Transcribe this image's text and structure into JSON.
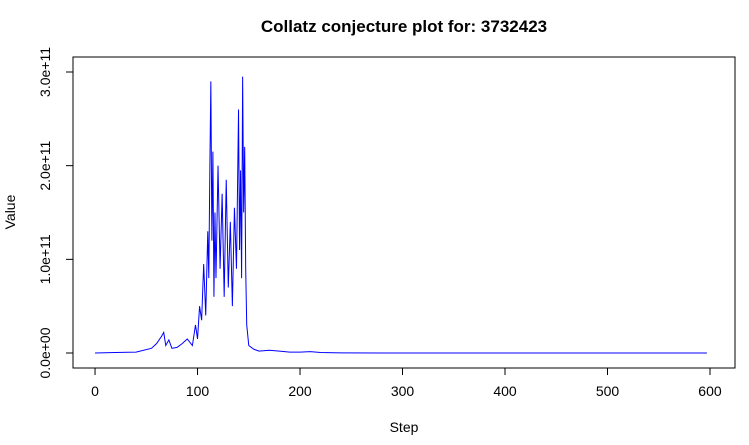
{
  "chart_data": {
    "type": "line",
    "title": "Collatz conjecture plot for: 3732423",
    "x_label": "Step",
    "y_label": "Value",
    "x": [
      0,
      20,
      40,
      55,
      60,
      65,
      67,
      69,
      72,
      75,
      80,
      85,
      90,
      95,
      98,
      100,
      102,
      104,
      106,
      108,
      110,
      111,
      112,
      113,
      114,
      115,
      116,
      117,
      118,
      120,
      122,
      124,
      126,
      128,
      130,
      132,
      134,
      136,
      138,
      140,
      141,
      142,
      143,
      144,
      145,
      146,
      147,
      148,
      150,
      155,
      160,
      170,
      180,
      190,
      200,
      210,
      220,
      240,
      300,
      400,
      500,
      597
    ],
    "series": [
      {
        "color": "#0000ff",
        "values": [
          3732423,
          500000000,
          1000000000,
          5000000000,
          10000000000,
          18000000000,
          22000000000,
          8000000000,
          14000000000,
          5000000000,
          6000000000,
          10000000000,
          15000000000,
          8000000000,
          30000000000,
          15000000000,
          50000000000,
          35000000000,
          95000000000,
          40000000000,
          130000000000,
          80000000000,
          195000000000,
          290000000000,
          120000000000,
          215000000000,
          60000000000,
          150000000000,
          80000000000,
          200000000000,
          90000000000,
          170000000000,
          60000000000,
          185000000000,
          70000000000,
          140000000000,
          50000000000,
          155000000000,
          90000000000,
          260000000000,
          110000000000,
          195000000000,
          80000000000,
          295000000000,
          150000000000,
          220000000000,
          90000000000,
          30000000000,
          8000000000,
          4000000000,
          2000000000,
          3000000000,
          2000000000,
          1000000000,
          1000000000,
          1500000000,
          500000000,
          100000000,
          10000000,
          1000000,
          100000,
          1
        ]
      }
    ],
    "xlim": [
      -21.5,
      624.4
    ],
    "xticks": [
      0,
      100,
      200,
      300,
      400,
      500,
      600
    ],
    "ylim": [
      -16000000000,
      316000000000
    ],
    "yticks": [
      {
        "value": 0,
        "label": "0.0e+00"
      },
      {
        "value": 100000000000,
        "label": "1.0e+11"
      },
      {
        "value": 200000000000,
        "label": "2.0e+11"
      },
      {
        "value": 300000000000,
        "label": "3.0e+11"
      }
    ]
  }
}
